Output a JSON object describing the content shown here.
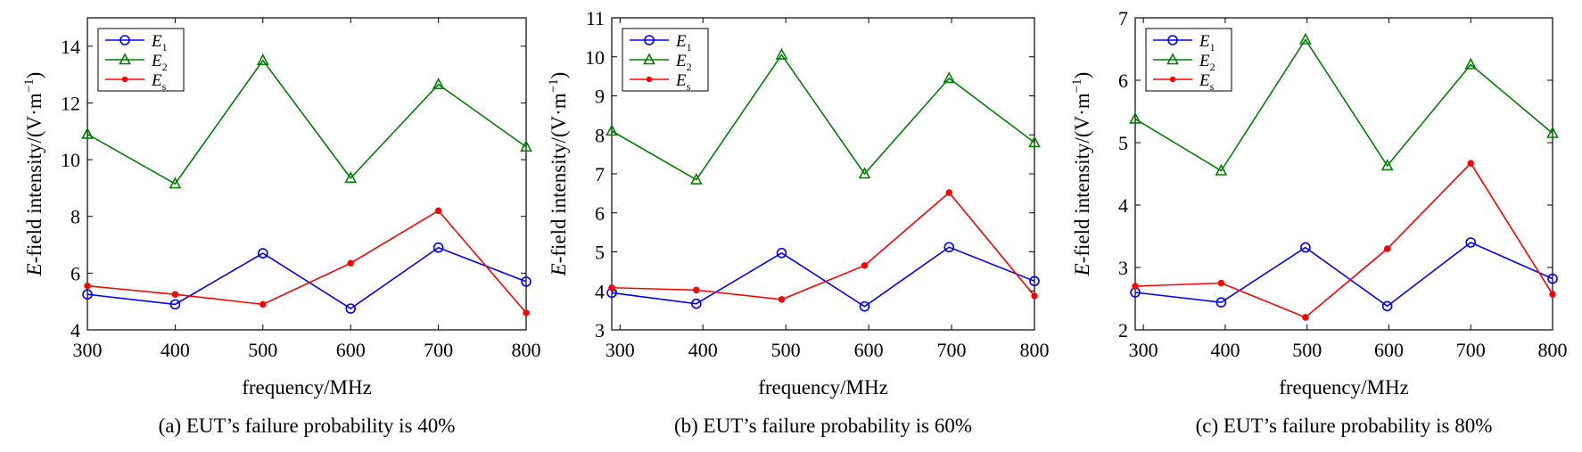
{
  "chart_data": [
    {
      "type": "line",
      "caption": "(a) EUT’s failure probability is 40%",
      "xlabel": "frequency/MHz",
      "ylabel": "E-field intensity/(V·m⁻¹)",
      "x": [
        300,
        400,
        500,
        600,
        700,
        800
      ],
      "xlim": [
        300,
        800
      ],
      "ylim": [
        4,
        15
      ],
      "yticks": [
        4,
        6,
        8,
        10,
        12,
        14
      ],
      "xticks": [
        300,
        400,
        500,
        600,
        700,
        800
      ],
      "series": [
        {
          "name": "E1",
          "name_base": "E",
          "name_sub": "1",
          "color": "#0000ff",
          "marker": "circle",
          "values": [
            5.25,
            4.9,
            6.7,
            4.75,
            6.9,
            5.7
          ]
        },
        {
          "name": "E2",
          "name_base": "E",
          "name_sub": "2",
          "color": "#008000",
          "marker": "triangle",
          "values": [
            10.9,
            9.15,
            13.5,
            9.35,
            12.65,
            10.45
          ]
        },
        {
          "name": "Es",
          "name_base": "E",
          "name_sub": "s",
          "color": "#ff0000",
          "marker": "dot",
          "values": [
            5.55,
            5.25,
            4.9,
            6.35,
            8.2,
            4.6
          ]
        }
      ],
      "legend": "top-left",
      "grid": false
    },
    {
      "type": "line",
      "caption": "(b) EUT’s failure probability is 60%",
      "xlabel": "frequency/MHz",
      "ylabel": "E-field intensity/(V·m⁻¹)",
      "x": [
        290,
        392,
        495,
        595,
        697,
        800
      ],
      "xlim": [
        290,
        800
      ],
      "ylim": [
        3,
        11
      ],
      "yticks": [
        3,
        4,
        5,
        6,
        7,
        8,
        9,
        10,
        11
      ],
      "xticks": [
        300,
        400,
        500,
        600,
        700,
        800
      ],
      "series": [
        {
          "name": "E1",
          "name_base": "E",
          "name_sub": "1",
          "color": "#0000ff",
          "marker": "circle",
          "values": [
            3.95,
            3.67,
            4.97,
            3.6,
            5.12,
            4.25
          ]
        },
        {
          "name": "E2",
          "name_base": "E",
          "name_sub": "2",
          "color": "#008000",
          "marker": "triangle",
          "values": [
            8.1,
            6.85,
            10.05,
            7.0,
            9.45,
            7.8
          ]
        },
        {
          "name": "Es",
          "name_base": "E",
          "name_sub": "s",
          "color": "#ff0000",
          "marker": "dot",
          "values": [
            4.08,
            4.02,
            3.78,
            4.65,
            6.52,
            3.87
          ]
        }
      ],
      "legend": "top-left",
      "grid": false
    },
    {
      "type": "line",
      "caption": "(c) EUT’s failure probability is 80%",
      "xlabel": "frequency/MHz",
      "ylabel": "E-field intensity/(V·m⁻¹)",
      "x": [
        290,
        395,
        498,
        598,
        700,
        800
      ],
      "xlim": [
        290,
        800
      ],
      "ylim": [
        2,
        7
      ],
      "yticks": [
        2,
        3,
        4,
        5,
        6,
        7
      ],
      "xticks": [
        300,
        400,
        500,
        600,
        700,
        800
      ],
      "series": [
        {
          "name": "E1",
          "name_base": "E",
          "name_sub": "1",
          "color": "#0000ff",
          "marker": "circle",
          "values": [
            2.6,
            2.44,
            3.32,
            2.38,
            3.4,
            2.82
          ]
        },
        {
          "name": "E2",
          "name_base": "E",
          "name_sub": "2",
          "color": "#008000",
          "marker": "triangle",
          "values": [
            5.38,
            4.55,
            6.65,
            4.63,
            6.25,
            5.15
          ]
        },
        {
          "name": "Es",
          "name_base": "E",
          "name_sub": "s",
          "color": "#ff0000",
          "marker": "dot",
          "values": [
            2.7,
            2.75,
            2.2,
            3.3,
            4.67,
            2.57
          ]
        }
      ],
      "legend": "top-left",
      "grid": false
    }
  ]
}
